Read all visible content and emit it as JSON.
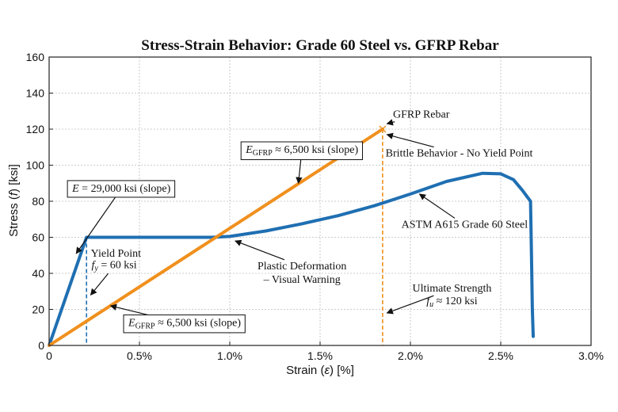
{
  "chart_data": {
    "type": "line",
    "title": "Stress-Strain Behavior: Grade 60 Steel vs. GFRP Rebar",
    "xlabel_parts": [
      "Strain (",
      "ε",
      ") [%]"
    ],
    "ylabel_parts": [
      "Stress (",
      "f",
      ") [ksi]"
    ],
    "xlim": [
      0,
      3.0
    ],
    "ylim": [
      0,
      160
    ],
    "x_ticks": [
      0,
      0.5,
      1.0,
      1.5,
      2.0,
      2.5,
      3.0
    ],
    "x_tick_labels": [
      "0",
      "0.5%",
      "1.0%",
      "1.5%",
      "2.0%",
      "2.5%",
      "3.0%"
    ],
    "y_ticks": [
      0,
      20,
      40,
      60,
      80,
      100,
      120,
      140,
      160
    ],
    "y_tick_labels": [
      "0",
      "20",
      "40",
      "60",
      "80",
      "100",
      "120",
      "140",
      "160"
    ],
    "grid": true,
    "series": [
      {
        "name": "ASTM A615 Grade 60 Steel",
        "color": "#1f6fb2",
        "x": [
          0,
          0.207,
          0.5,
          0.9,
          1.0,
          1.2,
          1.4,
          1.6,
          1.8,
          2.0,
          2.2,
          2.4,
          2.5,
          2.57,
          2.62,
          2.65,
          2.665,
          2.67,
          2.675,
          2.68
        ],
        "y": [
          0,
          60,
          60,
          60,
          60.5,
          63.5,
          67.5,
          72,
          77.5,
          84,
          91,
          95.5,
          95.2,
          92,
          86,
          82,
          80,
          50,
          20,
          5
        ]
      },
      {
        "name": "GFRP Rebar",
        "color": "#f0901e",
        "x": [
          0,
          1.846
        ],
        "y": [
          0,
          120
        ]
      }
    ],
    "reference_lines": [
      {
        "name": "yield-strain-line",
        "x": 0.207,
        "y_top": 60,
        "color": "#1f6fb2"
      },
      {
        "name": "gfrp-rupture-line",
        "x": 1.846,
        "y_top": 120,
        "color": "#f0901e"
      }
    ],
    "rupture_marker": {
      "x": 1.846,
      "y": 120
    },
    "annotations": [
      {
        "name": "steel-modulus",
        "label_parts": [
          [
            "E",
            "i"
          ],
          [
            " = 29,000 ksi (slope)",
            ""
          ]
        ],
        "boxed": true,
        "text_x": 0.4,
        "text_y": 87.5,
        "arrow_to": [
          0.15,
          51
        ]
      },
      {
        "name": "gfrp-modulus-upper",
        "label_parts": [
          [
            "E",
            "i"
          ],
          [
            "GFRP",
            "sub"
          ],
          [
            " ≈ 6,500 ksi (slope)",
            ""
          ]
        ],
        "boxed": true,
        "text_x": 1.4,
        "text_y": 109,
        "arrow_to": [
          1.38,
          90
        ]
      },
      {
        "name": "gfrp-modulus-lower",
        "label_parts": [
          [
            "E",
            "i"
          ],
          [
            "GFRP",
            "sub"
          ],
          [
            " ≈ 6,500 ksi (slope)",
            ""
          ]
        ],
        "boxed": true,
        "text_x": 0.75,
        "text_y": 13,
        "arrow_to": [
          0.34,
          22
        ]
      },
      {
        "name": "yield-point",
        "label_parts": [
          [
            "Yield Point",
            ""
          ]
        ],
        "text_x": 0.37,
        "text_y": 51.5,
        "arrow_to": null
      },
      {
        "name": "yield-fy",
        "label_parts": [
          [
            "f",
            "i"
          ],
          [
            "y",
            "sub-i"
          ],
          [
            " = 60 ksi",
            ""
          ]
        ],
        "text_x": 0.36,
        "text_y": 45,
        "arrow_to": [
          0.23,
          28
        ]
      },
      {
        "name": "plastic-deformation",
        "label_parts": [
          [
            "Plastic Deformation",
            ""
          ]
        ],
        "text_x": 1.4,
        "text_y": 44.5,
        "arrow_to": [
          1.03,
          58
        ]
      },
      {
        "name": "visual-warning",
        "label_parts": [
          [
            "– Visual Warning",
            ""
          ]
        ],
        "text_x": 1.4,
        "text_y": 37,
        "arrow_to": null
      },
      {
        "name": "gfrp-label",
        "label_parts": [
          [
            "GFRP Rebar",
            ""
          ]
        ],
        "text_x": 2.06,
        "text_y": 128.5,
        "arrow_to": [
          1.87,
          123
        ]
      },
      {
        "name": "brittle-behavior",
        "label_parts": [
          [
            "Brittle Behavior - No Yield Point",
            ""
          ]
        ],
        "text_x": 2.27,
        "text_y": 107,
        "arrow_to": [
          1.87,
          117
        ]
      },
      {
        "name": "steel-label",
        "label_parts": [
          [
            "ASTM A615 Grade 60 Steel",
            ""
          ]
        ],
        "text_x": 2.3,
        "text_y": 67.5,
        "arrow_to": [
          2.05,
          84
        ]
      },
      {
        "name": "ultimate-strength",
        "label_parts": [
          [
            "Ultimate Strength",
            ""
          ]
        ],
        "text_x": 2.23,
        "text_y": 32,
        "arrow_to": [
          1.87,
          18
        ]
      },
      {
        "name": "ultimate-fu",
        "label_parts": [
          [
            "f",
            "i"
          ],
          [
            "u",
            "sub-i"
          ],
          [
            " ≈ 120 ksi",
            ""
          ]
        ],
        "text_x": 2.23,
        "text_y": 25,
        "arrow_to": null
      }
    ]
  }
}
